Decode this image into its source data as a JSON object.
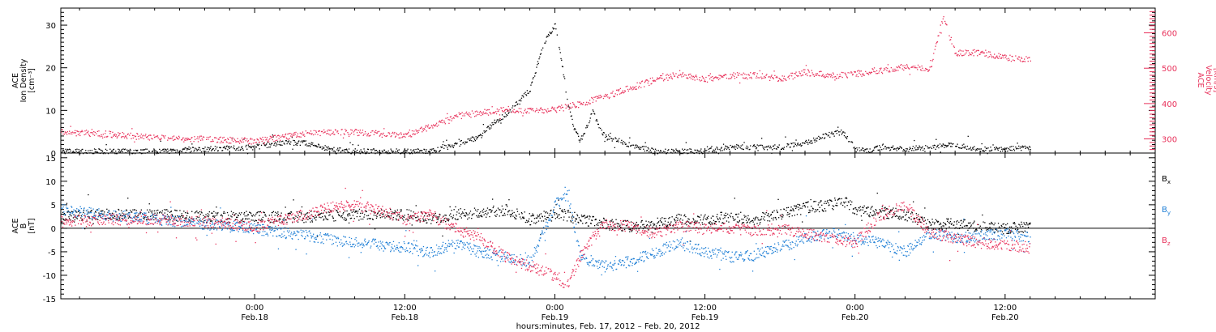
{
  "colors": {
    "black": "#000000",
    "magenta": "#e8305a",
    "blue": "#1f7fd6"
  },
  "x_ticks": [
    {
      "time": "0:00",
      "date": "Feb.18",
      "hours": 24
    },
    {
      "time": "12:00",
      "date": "Feb.18",
      "hours": 36
    },
    {
      "time": "0:00",
      "date": "Feb.19",
      "hours": 48
    },
    {
      "time": "12:00",
      "date": "Feb.19",
      "hours": 60
    },
    {
      "time": "0:00",
      "date": "Feb.20",
      "hours": 72
    },
    {
      "time": "12:00",
      "date": "Feb.20",
      "hours": 84
    }
  ],
  "x_caption": "hours:minutes, Feb. 17, 2012 – Feb. 20, 2012",
  "chart_data": [
    {
      "type": "scatter",
      "panel": "top",
      "x_unit": "hours since Feb.17 0:00 UT",
      "xlim": [
        8.5,
        96
      ],
      "left_axis": {
        "label_lines": [
          "ACE",
          "Ion Density",
          "[cm⁻³]"
        ],
        "ylim": [
          0,
          34
        ],
        "ticks": [
          0,
          10,
          20,
          30
        ]
      },
      "right_axis": {
        "label_lines": [
          "ACE",
          "Velocity",
          "[km/s]"
        ],
        "ylim": [
          260,
          670
        ],
        "ticks": [
          300,
          400,
          500,
          600
        ]
      },
      "series": [
        {
          "name": "Ion Density",
          "axis": "left",
          "color": "#000000",
          "x": [
            8.5,
            12,
            16,
            20,
            24,
            26,
            28,
            30,
            32,
            34,
            36,
            38,
            40,
            42,
            43,
            44,
            45,
            46,
            47,
            47.5,
            48,
            48.5,
            49,
            49.5,
            50,
            50.5,
            51,
            51.5,
            52,
            53,
            54,
            56,
            58,
            60,
            62,
            64,
            66,
            68,
            69,
            70,
            71,
            72,
            73,
            74,
            76,
            78,
            80,
            82,
            84,
            86
          ],
          "y": [
            0.5,
            0.5,
            0.5,
            1.0,
            1.5,
            2.5,
            2.5,
            1.0,
            0.5,
            0.5,
            0.5,
            0.5,
            2.0,
            4.0,
            7.0,
            9.0,
            12.0,
            15.0,
            25.0,
            28.0,
            30.0,
            22.0,
            12.0,
            6.0,
            3.0,
            6.0,
            10.0,
            6.0,
            4.0,
            3.0,
            2.0,
            0.5,
            0.5,
            0.5,
            1.5,
            1.5,
            1.5,
            2.5,
            3.5,
            4.5,
            5.0,
            1.0,
            0.5,
            1.5,
            1.0,
            1.5,
            2.0,
            1.0,
            1.0,
            1.5
          ]
        },
        {
          "name": "Velocity",
          "axis": "right",
          "color": "#e8305a",
          "x": [
            8.5,
            12,
            16,
            20,
            24,
            26,
            28,
            30,
            32,
            34,
            36,
            38,
            40,
            42,
            44,
            46,
            48,
            50,
            52,
            54,
            56,
            58,
            60,
            62,
            64,
            66,
            68,
            70,
            72,
            74,
            76,
            78,
            79,
            80,
            82,
            84,
            86
          ],
          "y": [
            320,
            315,
            305,
            300,
            295,
            305,
            315,
            320,
            320,
            315,
            310,
            335,
            365,
            375,
            385,
            380,
            385,
            400,
            420,
            445,
            470,
            485,
            470,
            480,
            480,
            470,
            490,
            480,
            485,
            495,
            505,
            500,
            645,
            545,
            545,
            530,
            525
          ]
        }
      ]
    },
    {
      "type": "scatter",
      "panel": "bottom",
      "x_unit": "hours since Feb.17 0:00 UT",
      "xlim": [
        8.5,
        96
      ],
      "left_axis": {
        "label_lines": [
          "ACE",
          "B",
          "[nT]"
        ],
        "ylim": [
          -15,
          16
        ],
        "ticks": [
          -15,
          -10,
          -5,
          0,
          5,
          10,
          15
        ]
      },
      "series": [
        {
          "name": "Bx",
          "legend_main": "B",
          "legend_sub": "x",
          "color": "#000000",
          "x": [
            8.5,
            12,
            16,
            20,
            24,
            28,
            32,
            36,
            38,
            40,
            42,
            44,
            46,
            48,
            50,
            52,
            54,
            56,
            58,
            60,
            62,
            64,
            66,
            68,
            70,
            71,
            72,
            74,
            76,
            78,
            80,
            82,
            84,
            86
          ],
          "y": [
            2.5,
            3.0,
            3.0,
            2.5,
            2.5,
            2.5,
            3.0,
            3.0,
            2.0,
            3.0,
            3.5,
            4.0,
            2.0,
            3.5,
            2.0,
            1.0,
            0.5,
            1.0,
            2.0,
            2.0,
            2.5,
            2.0,
            3.0,
            4.5,
            5.0,
            6.0,
            4.0,
            3.5,
            3.0,
            1.0,
            1.0,
            0.5,
            0.0,
            0.5
          ]
        },
        {
          "name": "By",
          "legend_main": "B",
          "legend_sub": "y",
          "color": "#1f7fd6",
          "x": [
            8.5,
            12,
            16,
            20,
            24,
            28,
            32,
            36,
            38,
            40,
            42,
            44,
            46,
            48,
            49,
            50,
            52,
            54,
            56,
            58,
            60,
            62,
            64,
            66,
            68,
            70,
            72,
            74,
            76,
            78,
            80,
            82,
            84,
            86
          ],
          "y": [
            4.0,
            3.0,
            2.0,
            1.0,
            0.0,
            -1.5,
            -3.0,
            -4.0,
            -5.0,
            -3.0,
            -5.0,
            -6.0,
            -7.0,
            5.0,
            7.0,
            -6.0,
            -8.0,
            -7.0,
            -5.0,
            -3.0,
            -5.0,
            -6.0,
            -5.5,
            -4.0,
            -2.0,
            -1.0,
            -2.0,
            -3.0,
            -5.0,
            -1.0,
            -2.0,
            -1.5,
            -1.0,
            -2.0
          ]
        },
        {
          "name": "Bz",
          "legend_main": "B",
          "legend_sub": "z",
          "color": "#e8305a",
          "x": [
            8.5,
            12,
            16,
            20,
            24,
            28,
            30,
            32,
            34,
            36,
            38,
            40,
            42,
            44,
            46,
            48,
            49,
            50,
            51,
            52,
            54,
            56,
            58,
            60,
            62,
            64,
            66,
            68,
            70,
            72,
            74,
            76,
            78,
            80,
            82,
            84,
            86
          ],
          "y": [
            1.5,
            2.0,
            2.0,
            1.5,
            0.5,
            3.0,
            4.5,
            5.0,
            4.0,
            2.0,
            3.0,
            0.0,
            -2.0,
            -6.0,
            -8.0,
            -10.0,
            -12.0,
            -6.0,
            -2.0,
            1.0,
            0.5,
            -1.0,
            0.5,
            0.0,
            0.0,
            -0.5,
            0.0,
            -1.0,
            -2.0,
            -3.0,
            3.0,
            5.0,
            -1.0,
            -2.0,
            -3.0,
            -3.5,
            -4.0
          ]
        }
      ]
    }
  ]
}
